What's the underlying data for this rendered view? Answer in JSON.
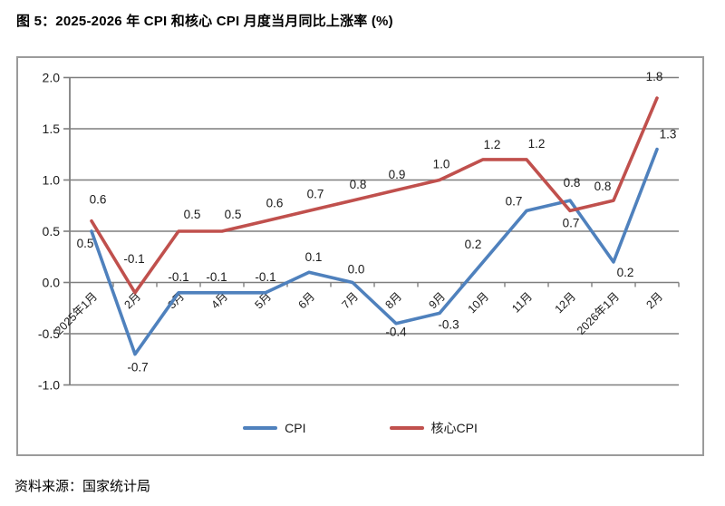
{
  "page": {
    "title": "图 5：2025-2026 年 CPI 和核心 CPI 月度当月同比上涨率 (%)",
    "source": "资料来源：国家统计局"
  },
  "chart_data": {
    "type": "line",
    "title": "图 5：2025-2026 年 CPI 和核心 CPI 月度当月同比上涨率 (%)",
    "xlabel": "",
    "ylabel": "",
    "unit": "%",
    "categories": [
      "2025年1月",
      "2月",
      "3月",
      "4月",
      "5月",
      "6月",
      "7月",
      "8月",
      "9月",
      "10月",
      "11月",
      "12月",
      "2026年1月",
      "2月"
    ],
    "series": [
      {
        "name": "CPI",
        "color": "#4F81BD",
        "values": [
          0.5,
          -0.7,
          -0.1,
          -0.1,
          -0.1,
          0.1,
          0.0,
          -0.4,
          -0.3,
          0.2,
          0.7,
          0.8,
          0.2,
          1.3
        ],
        "label_offsets": [
          [
            -7,
            18
          ],
          [
            3,
            19
          ],
          [
            0,
            -13
          ],
          [
            -6,
            -13
          ],
          [
            0,
            -13
          ],
          [
            5,
            -12
          ],
          [
            4,
            -10
          ],
          [
            0,
            14
          ],
          [
            10,
            17
          ],
          [
            -11,
            -15
          ],
          [
            -14,
            -6
          ],
          [
            2,
            -15
          ],
          [
            13,
            16
          ],
          [
            12,
            -12
          ]
        ]
      },
      {
        "name": "核心CPI",
        "color": "#C0504D",
        "values": [
          0.6,
          -0.1,
          0.5,
          0.5,
          0.6,
          0.7,
          0.8,
          0.9,
          1.0,
          1.2,
          1.2,
          0.7,
          0.8,
          1.8
        ],
        "label_offsets": [
          [
            7,
            -19
          ],
          [
            -1,
            -33
          ],
          [
            15,
            -14
          ],
          [
            12,
            -14
          ],
          [
            10,
            -15
          ],
          [
            7,
            -14
          ],
          [
            6,
            -13
          ],
          [
            1,
            -13
          ],
          [
            2,
            -13
          ],
          [
            10,
            -12
          ],
          [
            11,
            -13
          ],
          [
            1,
            18
          ],
          [
            -12,
            -11
          ],
          [
            -3,
            -19
          ]
        ]
      }
    ],
    "ylim": [
      -1.0,
      2.0
    ],
    "ytick_step": 0.5,
    "yticks": [
      "2.0",
      "1.5",
      "1.0",
      "0.5",
      "0.0",
      "-0.5",
      "-1.0"
    ],
    "label_decimals": 1,
    "grid": true,
    "legend_position": "bottom",
    "style": {
      "grid_color": "#7F7F7F",
      "axis_color": "#7F7F7F",
      "text_color": "#1a1a1a",
      "frame_border_color": "#9B9B9B"
    }
  }
}
